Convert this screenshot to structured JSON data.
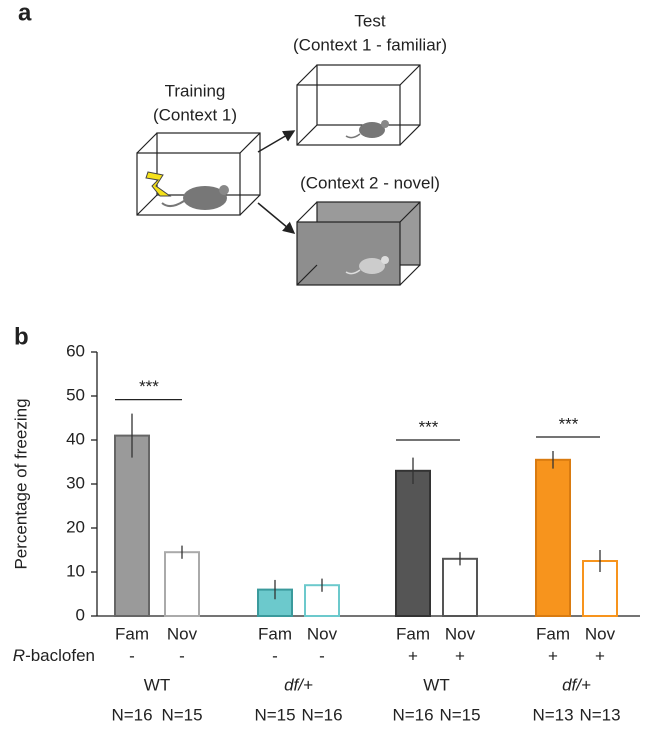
{
  "panel_a": {
    "panel_label": "a",
    "training": [
      "Training",
      "(Context 1)"
    ],
    "test": [
      "Test",
      "(Context 1 - familiar)"
    ],
    "novel": "(Context 2 - novel)"
  },
  "chart_data": {
    "type": "bar",
    "panel_label": "b",
    "ylabel": "Percentage of freezing",
    "ylim": [
      0,
      60
    ],
    "yticks": [
      0,
      10,
      20,
      30,
      40,
      50,
      60
    ],
    "categories": [
      "Fam",
      "Nov",
      "Fam",
      "Nov",
      "Fam",
      "Nov",
      "Fam",
      "Nov"
    ],
    "values": [
      41,
      14.5,
      6,
      7,
      33,
      13,
      35.5,
      12.5
    ],
    "errors": [
      5,
      1.5,
      2.2,
      1.5,
      3,
      1.5,
      2,
      2.5
    ],
    "colors": [
      "#9a9a9a",
      "#ffffff",
      "#6cc9cc",
      "#ffffff",
      "#555555",
      "#ffffff",
      "#f7941d",
      "#ffffff"
    ],
    "edge_colors": [
      "#666666",
      "#aaaaaa",
      "#3a9a9c",
      "#6cc9cc",
      "#333333",
      "#555555",
      "#d97b10",
      "#f7941d"
    ],
    "treatment_label": {
      "italic": "R",
      "rest": "-baclofen"
    },
    "treatment": [
      "-",
      "-",
      "-",
      "-",
      "+",
      "+",
      "+",
      "+"
    ],
    "groups": [
      {
        "label": "WT",
        "italic": false,
        "n": [
          "N=16",
          "N=15"
        ],
        "significance": "***"
      },
      {
        "label": "df/+",
        "italic": true,
        "n": [
          "N=15",
          "N=16"
        ]
      },
      {
        "label": "WT",
        "italic": false,
        "n": [
          "N=16",
          "N=15"
        ],
        "significance": "***"
      },
      {
        "label": "df/+",
        "italic": true,
        "n": [
          "N=13",
          "N=13"
        ],
        "significance": "***"
      }
    ]
  }
}
